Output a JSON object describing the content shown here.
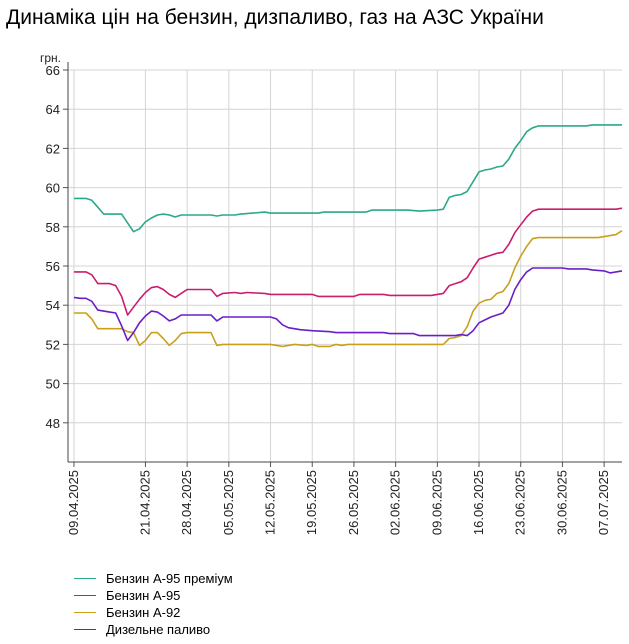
{
  "title": "Динаміка цін на бензин, дизпаливо, газ на АЗС України",
  "chart_data": {
    "type": "line",
    "title": "Динаміка цін на бензин, дизпаливо, газ на АЗС України",
    "ylabel": "грн.",
    "xlabel": "",
    "ylim": [
      46,
      66
    ],
    "yticks": [
      48,
      50,
      52,
      54,
      56,
      58,
      60,
      62,
      64,
      66
    ],
    "grid": true,
    "legend_position": "bottom-left",
    "xlim": [
      "2025-04-08",
      "2025-07-10"
    ],
    "xticks": [
      "09.04.2025",
      "21.04.2025",
      "28.04.2025",
      "05.05.2025",
      "12.05.2025",
      "19.05.2025",
      "26.05.2025",
      "02.06.2025",
      "09.06.2025",
      "16.06.2025",
      "23.06.2025",
      "30.06.2025",
      "07.07.2025"
    ],
    "series": [
      {
        "name": "Бензин А-95 преміум",
        "color": "#2ca88a",
        "points": [
          [
            "2025-04-09",
            59.45
          ],
          [
            "2025-04-10",
            59.45
          ],
          [
            "2025-04-11",
            59.45
          ],
          [
            "2025-04-12",
            59.35
          ],
          [
            "2025-04-13",
            59.0
          ],
          [
            "2025-04-14",
            58.65
          ],
          [
            "2025-04-15",
            58.65
          ],
          [
            "2025-04-16",
            58.65
          ],
          [
            "2025-04-17",
            58.65
          ],
          [
            "2025-04-18",
            58.2
          ],
          [
            "2025-04-19",
            57.75
          ],
          [
            "2025-04-20",
            57.9
          ],
          [
            "2025-04-21",
            58.25
          ],
          [
            "2025-04-22",
            58.45
          ],
          [
            "2025-04-23",
            58.6
          ],
          [
            "2025-04-24",
            58.65
          ],
          [
            "2025-04-25",
            58.6
          ],
          [
            "2025-04-26",
            58.5
          ],
          [
            "2025-04-27",
            58.6
          ],
          [
            "2025-04-29",
            58.6
          ],
          [
            "2025-05-02",
            58.6
          ],
          [
            "2025-05-03",
            58.55
          ],
          [
            "2025-05-04",
            58.6
          ],
          [
            "2025-05-06",
            58.6
          ],
          [
            "2025-05-07",
            58.65
          ],
          [
            "2025-05-09",
            58.7
          ],
          [
            "2025-05-11",
            58.75
          ],
          [
            "2025-05-12",
            58.7
          ],
          [
            "2025-05-16",
            58.7
          ],
          [
            "2025-05-20",
            58.7
          ],
          [
            "2025-05-21",
            58.75
          ],
          [
            "2025-05-28",
            58.75
          ],
          [
            "2025-05-29",
            58.85
          ],
          [
            "2025-06-04",
            58.85
          ],
          [
            "2025-06-06",
            58.8
          ],
          [
            "2025-06-09",
            58.85
          ],
          [
            "2025-06-10",
            58.9
          ],
          [
            "2025-06-11",
            59.5
          ],
          [
            "2025-06-12",
            59.6
          ],
          [
            "2025-06-13",
            59.65
          ],
          [
            "2025-06-14",
            59.8
          ],
          [
            "2025-06-15",
            60.3
          ],
          [
            "2025-06-16",
            60.8
          ],
          [
            "2025-06-17",
            60.9
          ],
          [
            "2025-06-18",
            60.95
          ],
          [
            "2025-06-19",
            61.05
          ],
          [
            "2025-06-20",
            61.1
          ],
          [
            "2025-06-21",
            61.45
          ],
          [
            "2025-06-22",
            62.0
          ],
          [
            "2025-06-23",
            62.4
          ],
          [
            "2025-06-24",
            62.85
          ],
          [
            "2025-06-25",
            63.05
          ],
          [
            "2025-06-26",
            63.15
          ],
          [
            "2025-06-30",
            63.15
          ],
          [
            "2025-07-04",
            63.15
          ],
          [
            "2025-07-05",
            63.2
          ],
          [
            "2025-07-10",
            63.2
          ]
        ]
      },
      {
        "name": "Бензин А-95",
        "color": "#c81e6e",
        "points": [
          [
            "2025-04-09",
            55.7
          ],
          [
            "2025-04-10",
            55.7
          ],
          [
            "2025-04-11",
            55.7
          ],
          [
            "2025-04-12",
            55.55
          ],
          [
            "2025-04-13",
            55.1
          ],
          [
            "2025-04-14",
            55.1
          ],
          [
            "2025-04-15",
            55.1
          ],
          [
            "2025-04-16",
            55.0
          ],
          [
            "2025-04-17",
            54.45
          ],
          [
            "2025-04-18",
            53.5
          ],
          [
            "2025-04-19",
            53.9
          ],
          [
            "2025-04-20",
            54.3
          ],
          [
            "2025-04-21",
            54.65
          ],
          [
            "2025-04-22",
            54.9
          ],
          [
            "2025-04-23",
            54.95
          ],
          [
            "2025-04-24",
            54.8
          ],
          [
            "2025-04-25",
            54.55
          ],
          [
            "2025-04-26",
            54.4
          ],
          [
            "2025-04-27",
            54.6
          ],
          [
            "2025-04-28",
            54.8
          ],
          [
            "2025-05-02",
            54.8
          ],
          [
            "2025-05-03",
            54.45
          ],
          [
            "2025-05-04",
            54.6
          ],
          [
            "2025-05-06",
            54.65
          ],
          [
            "2025-05-07",
            54.6
          ],
          [
            "2025-05-08",
            54.65
          ],
          [
            "2025-05-11",
            54.6
          ],
          [
            "2025-05-12",
            54.55
          ],
          [
            "2025-05-19",
            54.55
          ],
          [
            "2025-05-20",
            54.45
          ],
          [
            "2025-05-26",
            54.45
          ],
          [
            "2025-05-27",
            54.55
          ],
          [
            "2025-05-31",
            54.55
          ],
          [
            "2025-06-01",
            54.5
          ],
          [
            "2025-06-08",
            54.5
          ],
          [
            "2025-06-09",
            54.55
          ],
          [
            "2025-06-10",
            54.6
          ],
          [
            "2025-06-11",
            55.0
          ],
          [
            "2025-06-12",
            55.1
          ],
          [
            "2025-06-13",
            55.2
          ],
          [
            "2025-06-14",
            55.4
          ],
          [
            "2025-06-15",
            55.9
          ],
          [
            "2025-06-16",
            56.35
          ],
          [
            "2025-06-17",
            56.45
          ],
          [
            "2025-06-18",
            56.55
          ],
          [
            "2025-06-19",
            56.65
          ],
          [
            "2025-06-20",
            56.7
          ],
          [
            "2025-06-21",
            57.1
          ],
          [
            "2025-06-22",
            57.7
          ],
          [
            "2025-06-23",
            58.1
          ],
          [
            "2025-06-24",
            58.5
          ],
          [
            "2025-06-25",
            58.8
          ],
          [
            "2025-06-26",
            58.9
          ],
          [
            "2025-07-09",
            58.9
          ],
          [
            "2025-07-10",
            58.95
          ]
        ]
      },
      {
        "name": "Бензин А-92",
        "color": "#c9a01e",
        "points": [
          [
            "2025-04-09",
            53.6
          ],
          [
            "2025-04-10",
            53.6
          ],
          [
            "2025-04-11",
            53.6
          ],
          [
            "2025-04-12",
            53.3
          ],
          [
            "2025-04-13",
            52.8
          ],
          [
            "2025-04-14",
            52.8
          ],
          [
            "2025-04-16",
            52.8
          ],
          [
            "2025-04-17",
            52.8
          ],
          [
            "2025-04-18",
            52.65
          ],
          [
            "2025-04-19",
            52.6
          ],
          [
            "2025-04-20",
            51.95
          ],
          [
            "2025-04-21",
            52.2
          ],
          [
            "2025-04-22",
            52.6
          ],
          [
            "2025-04-23",
            52.6
          ],
          [
            "2025-04-24",
            52.3
          ],
          [
            "2025-04-25",
            51.95
          ],
          [
            "2025-04-26",
            52.2
          ],
          [
            "2025-04-27",
            52.55
          ],
          [
            "2025-04-28",
            52.6
          ],
          [
            "2025-05-02",
            52.6
          ],
          [
            "2025-05-03",
            51.95
          ],
          [
            "2025-05-04",
            52.0
          ],
          [
            "2025-05-12",
            52.0
          ],
          [
            "2025-05-14",
            51.9
          ],
          [
            "2025-05-16",
            52.0
          ],
          [
            "2025-05-18",
            51.95
          ],
          [
            "2025-05-19",
            52.0
          ],
          [
            "2025-05-20",
            51.9
          ],
          [
            "2025-05-22",
            51.9
          ],
          [
            "2025-05-23",
            52.0
          ],
          [
            "2025-05-24",
            51.95
          ],
          [
            "2025-05-25",
            52.0
          ],
          [
            "2025-06-05",
            52.0
          ],
          [
            "2025-06-10",
            52.0
          ],
          [
            "2025-06-11",
            52.3
          ],
          [
            "2025-06-12",
            52.35
          ],
          [
            "2025-06-13",
            52.45
          ],
          [
            "2025-06-14",
            52.9
          ],
          [
            "2025-06-15",
            53.7
          ],
          [
            "2025-06-16",
            54.1
          ],
          [
            "2025-06-17",
            54.25
          ],
          [
            "2025-06-18",
            54.3
          ],
          [
            "2025-06-19",
            54.6
          ],
          [
            "2025-06-20",
            54.7
          ],
          [
            "2025-06-21",
            55.1
          ],
          [
            "2025-06-22",
            55.9
          ],
          [
            "2025-06-23",
            56.5
          ],
          [
            "2025-06-24",
            57.0
          ],
          [
            "2025-06-25",
            57.4
          ],
          [
            "2025-06-26",
            57.45
          ],
          [
            "2025-07-06",
            57.45
          ],
          [
            "2025-07-07",
            57.5
          ],
          [
            "2025-07-09",
            57.6
          ],
          [
            "2025-07-10",
            57.8
          ]
        ]
      },
      {
        "name": "Дизельне паливо",
        "color": "#6a1ec8",
        "points": [
          [
            "2025-04-09",
            54.4
          ],
          [
            "2025-04-10",
            54.35
          ],
          [
            "2025-04-11",
            54.35
          ],
          [
            "2025-04-12",
            54.2
          ],
          [
            "2025-04-13",
            53.75
          ],
          [
            "2025-04-14",
            53.7
          ],
          [
            "2025-04-15",
            53.65
          ],
          [
            "2025-04-16",
            53.6
          ],
          [
            "2025-04-17",
            52.95
          ],
          [
            "2025-04-18",
            52.2
          ],
          [
            "2025-04-19",
            52.6
          ],
          [
            "2025-04-20",
            53.1
          ],
          [
            "2025-04-21",
            53.45
          ],
          [
            "2025-04-22",
            53.7
          ],
          [
            "2025-04-23",
            53.65
          ],
          [
            "2025-04-24",
            53.45
          ],
          [
            "2025-04-25",
            53.2
          ],
          [
            "2025-04-26",
            53.3
          ],
          [
            "2025-04-27",
            53.5
          ],
          [
            "2025-05-02",
            53.5
          ],
          [
            "2025-05-03",
            53.2
          ],
          [
            "2025-05-04",
            53.4
          ],
          [
            "2025-05-12",
            53.4
          ],
          [
            "2025-05-13",
            53.3
          ],
          [
            "2025-05-14",
            53.0
          ],
          [
            "2025-05-15",
            52.85
          ],
          [
            "2025-05-17",
            52.75
          ],
          [
            "2025-05-19",
            52.7
          ],
          [
            "2025-05-22",
            52.65
          ],
          [
            "2025-05-23",
            52.6
          ],
          [
            "2025-05-31",
            52.6
          ],
          [
            "2025-06-01",
            52.55
          ],
          [
            "2025-06-05",
            52.55
          ],
          [
            "2025-06-06",
            52.45
          ],
          [
            "2025-06-12",
            52.45
          ],
          [
            "2025-06-13",
            52.5
          ],
          [
            "2025-06-14",
            52.45
          ],
          [
            "2025-06-15",
            52.7
          ],
          [
            "2025-06-16",
            53.1
          ],
          [
            "2025-06-17",
            53.25
          ],
          [
            "2025-06-18",
            53.4
          ],
          [
            "2025-06-19",
            53.5
          ],
          [
            "2025-06-20",
            53.6
          ],
          [
            "2025-06-21",
            54.0
          ],
          [
            "2025-06-22",
            54.8
          ],
          [
            "2025-06-23",
            55.3
          ],
          [
            "2025-06-24",
            55.7
          ],
          [
            "2025-06-25",
            55.9
          ],
          [
            "2025-06-26",
            55.9
          ],
          [
            "2025-06-30",
            55.9
          ],
          [
            "2025-07-01",
            55.85
          ],
          [
            "2025-07-04",
            55.85
          ],
          [
            "2025-07-05",
            55.8
          ],
          [
            "2025-07-07",
            55.75
          ],
          [
            "2025-07-08",
            55.65
          ],
          [
            "2025-07-09",
            55.7
          ],
          [
            "2025-07-10",
            55.75
          ]
        ]
      }
    ]
  }
}
